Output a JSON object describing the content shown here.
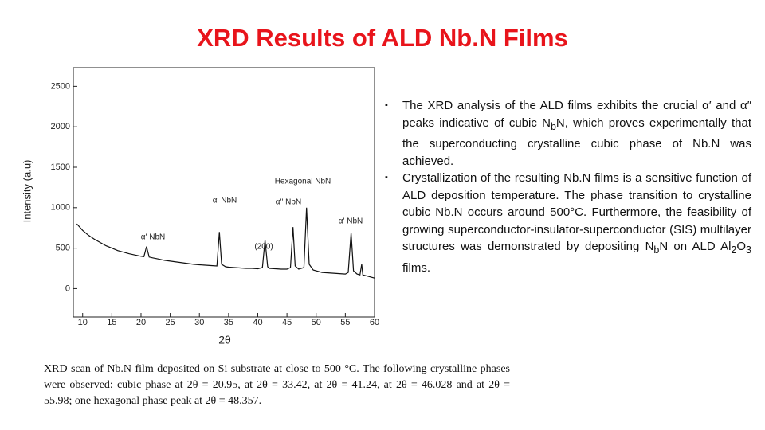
{
  "title": "XRD Results of ALD Nb.N Films",
  "bullets": [
    {
      "parts": [
        "The XRD analysis of the ALD films exhibits the crucial α′ and α″ peaks indicative of cubic N",
        "b",
        "N, which proves experimentally that the superconducting crystalline cubic phase of Nb.N was achieved."
      ]
    },
    {
      "parts": [
        "Crystallization of the resulting Nb.N films is a sensitive function of ALD deposition temperature. The phase transition to crystalline cubic Nb.N occurs around 500°C. Furthermore, the feasibility of growing superconductor-insulator-superconductor (SIS) multilayer structures was demonstrated by depositing N",
        "b",
        "N on ALD Al",
        "2",
        "O",
        "3",
        " films."
      ]
    }
  ],
  "caption": "XRD scan of Nb.N film deposited on Si substrate at close to 500 °C. The following crystalline phases were observed: cubic phase at 2θ = 20.95, at 2θ = 33.42, at 2θ = 41.24, at 2θ = 46.028 and at 2θ = 55.98; one hexagonal phase peak at 2θ = 48.357.",
  "chart_data": {
    "type": "line",
    "x_label": "2θ",
    "y_label": "Intensity (a.u)",
    "x": [
      9,
      10,
      11,
      12,
      13,
      14,
      15,
      16,
      17,
      18,
      19,
      20,
      20.5,
      20.95,
      21.4,
      22,
      23,
      24,
      25,
      26,
      27,
      28,
      29,
      30,
      31,
      32,
      33,
      33.42,
      33.8,
      34.5,
      35,
      36,
      37,
      38,
      39,
      40,
      40.8,
      41.24,
      41.7,
      42,
      43,
      44,
      45,
      45.6,
      46.03,
      46.4,
      47,
      47.9,
      48.36,
      48.8,
      49.5,
      50,
      51,
      52,
      53,
      54,
      55,
      55.5,
      55.98,
      56.4,
      57,
      57.5,
      57.8,
      58,
      59,
      60
    ],
    "values": [
      800,
      720,
      660,
      610,
      570,
      530,
      500,
      470,
      450,
      430,
      415,
      400,
      395,
      520,
      390,
      380,
      365,
      350,
      340,
      330,
      320,
      310,
      300,
      295,
      290,
      285,
      280,
      700,
      300,
      270,
      265,
      260,
      255,
      250,
      250,
      245,
      260,
      600,
      270,
      250,
      245,
      240,
      240,
      260,
      760,
      280,
      240,
      260,
      1000,
      300,
      230,
      220,
      200,
      195,
      190,
      185,
      180,
      200,
      690,
      220,
      180,
      170,
      300,
      170,
      150,
      130
    ],
    "color": "#111111",
    "xlim": [
      8.4,
      60
    ],
    "ylim": [
      -350,
      2730
    ],
    "xticks": [
      10,
      15,
      20,
      25,
      30,
      35,
      40,
      45,
      50,
      55,
      60
    ],
    "yticks": [
      0,
      500,
      1000,
      1500,
      2000,
      2500
    ],
    "annotations": [
      "α' NbN",
      "α' NbN",
      "Hexagonal NbN",
      "α'' NbN",
      "(200)",
      "α' NbN"
    ]
  }
}
